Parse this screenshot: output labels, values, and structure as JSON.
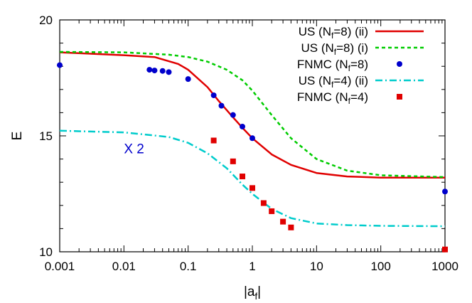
{
  "chart_data": {
    "type": "line",
    "title": "",
    "xlabel_main": "|a",
    "xlabel_sub": "f",
    "xlabel_close": "|",
    "ylabel": "E",
    "xscale": "log",
    "xlim": [
      0.001,
      1000
    ],
    "ylim": [
      10,
      20
    ],
    "x_ticks": [
      0.001,
      0.01,
      0.1,
      1,
      10,
      100,
      1000
    ],
    "x_tick_labels": [
      "0.001",
      "0.01",
      "0.1",
      "1",
      "10",
      "100",
      "1000"
    ],
    "y_ticks": [
      10,
      15,
      20
    ],
    "y_tick_labels": [
      "10",
      "15",
      "20"
    ],
    "grid": false,
    "legend_position": "top-right",
    "annotation": {
      "text": "X 2",
      "x": 0.01,
      "y": 14.25,
      "color": "#0000cc"
    },
    "series": [
      {
        "legend_main": "US (N",
        "legend_sub": "f",
        "legend_rest": "=8) (ii)",
        "kind": "line",
        "color": "#e00000",
        "dash": "",
        "x": [
          0.001,
          0.01,
          0.03,
          0.07,
          0.1,
          0.2,
          0.3,
          0.5,
          0.7,
          1,
          2,
          4,
          10,
          30,
          100,
          1000
        ],
        "y": [
          18.6,
          18.48,
          18.4,
          18.1,
          17.85,
          17.1,
          16.5,
          15.8,
          15.35,
          14.9,
          14.2,
          13.75,
          13.4,
          13.25,
          13.2,
          13.2
        ]
      },
      {
        "legend_main": "US (N",
        "legend_sub": "f",
        "legend_rest": "=8) (i)",
        "kind": "line",
        "color": "#00cc00",
        "dash": "5,4",
        "x": [
          0.001,
          0.01,
          0.05,
          0.1,
          0.2,
          0.4,
          0.7,
          1,
          2,
          4,
          10,
          30,
          100,
          1000
        ],
        "y": [
          18.62,
          18.6,
          18.5,
          18.4,
          18.2,
          17.85,
          17.4,
          16.95,
          15.9,
          14.9,
          14.0,
          13.5,
          13.3,
          13.22
        ]
      },
      {
        "legend_main": "FNMC (N",
        "legend_sub": "f",
        "legend_rest": "=8)",
        "kind": "points",
        "marker": "circle",
        "color": "#0000cc",
        "x": [
          0.001,
          0.025,
          0.03,
          0.04,
          0.05,
          0.1,
          0.25,
          0.33,
          0.5,
          0.7,
          1,
          1000
        ],
        "y": [
          18.05,
          17.85,
          17.82,
          17.8,
          17.75,
          17.45,
          16.75,
          16.3,
          15.9,
          15.4,
          14.9,
          12.6
        ]
      },
      {
        "legend_main": "US (N",
        "legend_sub": "f",
        "legend_rest": "=4) (ii)",
        "kind": "line",
        "color": "#00cccc",
        "dash": "10,4,2,4",
        "x": [
          0.001,
          0.01,
          0.05,
          0.1,
          0.2,
          0.4,
          0.7,
          1,
          2,
          4,
          10,
          30,
          100,
          1000
        ],
        "y": [
          15.22,
          15.15,
          14.95,
          14.7,
          14.25,
          13.6,
          12.9,
          12.5,
          11.85,
          11.45,
          11.22,
          11.15,
          11.12,
          11.1
        ]
      },
      {
        "legend_main": "FNMC (N",
        "legend_sub": "f",
        "legend_rest": "=4)",
        "kind": "points",
        "marker": "square",
        "color": "#e00000",
        "x": [
          0.25,
          0.5,
          0.7,
          1,
          1.5,
          2,
          3,
          4,
          1000
        ],
        "y": [
          14.8,
          13.9,
          13.25,
          12.75,
          12.1,
          11.75,
          11.3,
          11.05,
          10.1
        ]
      }
    ]
  }
}
